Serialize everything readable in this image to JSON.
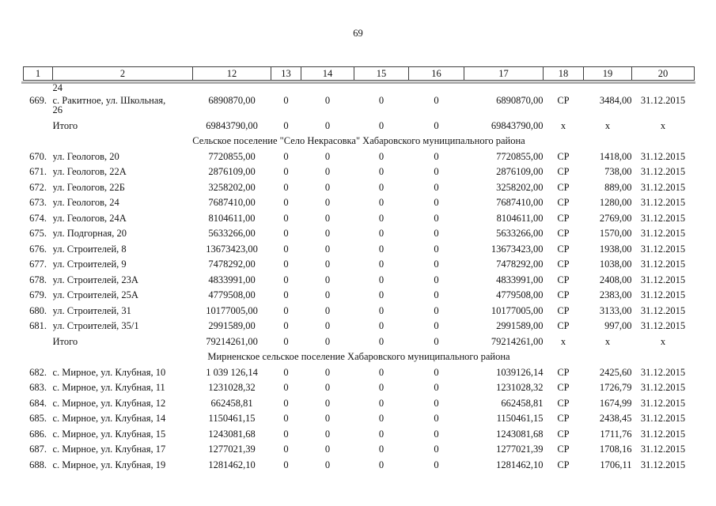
{
  "page_number": "69",
  "table": {
    "header_columns": [
      "1",
      "2",
      "12",
      "13",
      "14",
      "15",
      "16",
      "17",
      "18",
      "19",
      "20"
    ],
    "rows": [
      {
        "type": "continuation",
        "cells": [
          "",
          "24",
          "",
          "",
          "",
          "",
          "",
          "",
          "",
          "",
          ""
        ]
      },
      {
        "type": "data",
        "wrap": true,
        "cells": [
          "669.",
          "с. Ракитное, ул. Школьная,\n26",
          "6890870,00",
          "0",
          "0",
          "0",
          "0",
          "6890870,00",
          "СР",
          "3484,00",
          "31.12.2015"
        ]
      },
      {
        "type": "total",
        "cells": [
          "",
          "Итого",
          "69843790,00",
          "0",
          "0",
          "0",
          "0",
          "69843790,00",
          "х",
          "х",
          "х"
        ]
      },
      {
        "type": "section",
        "label": "Сельское поселение \"Село Некрасовка\" Хабаровского муниципального района"
      },
      {
        "type": "data",
        "cells": [
          "670.",
          "ул. Геологов, 20",
          "7720855,00",
          "0",
          "0",
          "0",
          "0",
          "7720855,00",
          "СР",
          "1418,00",
          "31.12.2015"
        ]
      },
      {
        "type": "data",
        "cells": [
          "671.",
          "ул. Геологов, 22А",
          "2876109,00",
          "0",
          "0",
          "0",
          "0",
          "2876109,00",
          "СР",
          "738,00",
          "31.12.2015"
        ]
      },
      {
        "type": "data",
        "cells": [
          "672.",
          "ул. Геологов, 22Б",
          "3258202,00",
          "0",
          "0",
          "0",
          "0",
          "3258202,00",
          "СР",
          "889,00",
          "31.12.2015"
        ]
      },
      {
        "type": "data",
        "cells": [
          "673.",
          "ул. Геологов, 24",
          "7687410,00",
          "0",
          "0",
          "0",
          "0",
          "7687410,00",
          "СР",
          "1280,00",
          "31.12.2015"
        ]
      },
      {
        "type": "data",
        "cells": [
          "674.",
          "ул. Геологов, 24А",
          "8104611,00",
          "0",
          "0",
          "0",
          "0",
          "8104611,00",
          "СР",
          "2769,00",
          "31.12.2015"
        ]
      },
      {
        "type": "data",
        "cells": [
          "675.",
          "ул. Подгорная, 20",
          "5633266,00",
          "0",
          "0",
          "0",
          "0",
          "5633266,00",
          "СР",
          "1570,00",
          "31.12.2015"
        ]
      },
      {
        "type": "data",
        "cells": [
          "676.",
          "ул. Строителей, 8",
          "13673423,00",
          "0",
          "0",
          "0",
          "0",
          "13673423,00",
          "СР",
          "1938,00",
          "31.12.2015"
        ]
      },
      {
        "type": "data",
        "cells": [
          "677.",
          "ул. Строителей, 9",
          "7478292,00",
          "0",
          "0",
          "0",
          "0",
          "7478292,00",
          "СР",
          "1038,00",
          "31.12.2015"
        ]
      },
      {
        "type": "data",
        "cells": [
          "678.",
          "ул. Строителей, 23А",
          "4833991,00",
          "0",
          "0",
          "0",
          "0",
          "4833991,00",
          "СР",
          "2408,00",
          "31.12.2015"
        ]
      },
      {
        "type": "data",
        "cells": [
          "679.",
          "ул. Строителей, 25А",
          "4779508,00",
          "0",
          "0",
          "0",
          "0",
          "4779508,00",
          "СР",
          "2383,00",
          "31.12.2015"
        ]
      },
      {
        "type": "data",
        "cells": [
          "680.",
          "ул. Строителей, 31",
          "10177005,00",
          "0",
          "0",
          "0",
          "0",
          "10177005,00",
          "СР",
          "3133,00",
          "31.12.2015"
        ]
      },
      {
        "type": "data",
        "cells": [
          "681.",
          "ул. Строителей, 35/1",
          "2991589,00",
          "0",
          "0",
          "0",
          "0",
          "2991589,00",
          "СР",
          "997,00",
          "31.12.2015"
        ]
      },
      {
        "type": "total",
        "cells": [
          "",
          "Итого",
          "79214261,00",
          "0",
          "0",
          "0",
          "0",
          "79214261,00",
          "х",
          "х",
          "х"
        ]
      },
      {
        "type": "section",
        "label": "Мирненское сельское поселение Хабаровского муниципального района"
      },
      {
        "type": "data",
        "cells": [
          "682.",
          "с. Мирное, ул. Клубная, 10",
          "1 039 126,14",
          "0",
          "0",
          "0",
          "0",
          "1039126,14",
          "СР",
          "2425,60",
          "31.12.2015"
        ]
      },
      {
        "type": "data",
        "cells": [
          "683.",
          "с. Мирное, ул. Клубная, 11",
          "1231028,32",
          "0",
          "0",
          "0",
          "0",
          "1231028,32",
          "СР",
          "1726,79",
          "31.12.2015"
        ]
      },
      {
        "type": "data",
        "cells": [
          "684.",
          "с. Мирное, ул. Клубная, 12",
          "662458,81",
          "0",
          "0",
          "0",
          "0",
          "662458,81",
          "СР",
          "1674,99",
          "31.12.2015"
        ]
      },
      {
        "type": "data",
        "cells": [
          "685.",
          "с. Мирное, ул. Клубная, 14",
          "1150461,15",
          "0",
          "0",
          "0",
          "0",
          "1150461,15",
          "СР",
          "2438,45",
          "31.12.2015"
        ]
      },
      {
        "type": "data",
        "cells": [
          "686.",
          "с. Мирное, ул. Клубная, 15",
          "1243081,68",
          "0",
          "0",
          "0",
          "0",
          "1243081,68",
          "СР",
          "1711,76",
          "31.12.2015"
        ]
      },
      {
        "type": "data",
        "cells": [
          "687.",
          "с. Мирное, ул. Клубная, 17",
          "1277021,39",
          "0",
          "0",
          "0",
          "0",
          "1277021,39",
          "СР",
          "1708,16",
          "31.12.2015"
        ]
      },
      {
        "type": "data",
        "cells": [
          "688.",
          "с. Мирное, ул. Клубная, 19",
          "1281462,10",
          "0",
          "0",
          "0",
          "0",
          "1281462,10",
          "СР",
          "1706,11",
          "31.12.2015"
        ]
      }
    ]
  }
}
